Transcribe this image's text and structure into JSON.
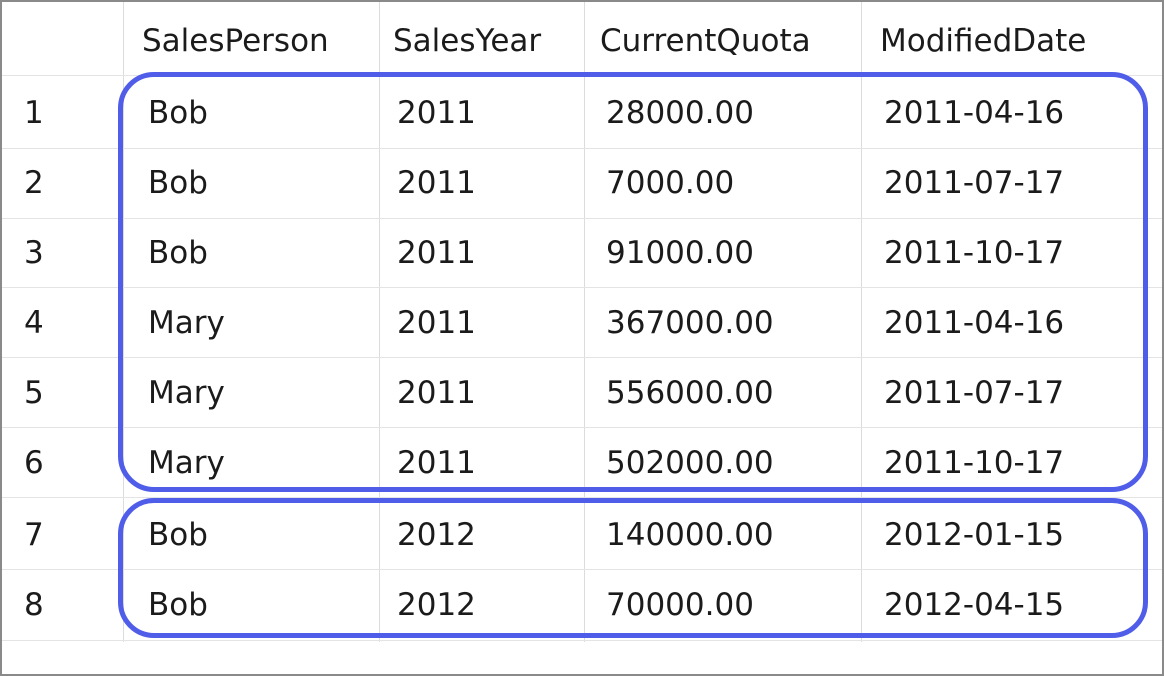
{
  "columns": [
    "",
    "SalesPerson",
    "SalesYear",
    "CurrentQuota",
    "ModifiedDate"
  ],
  "rows": [
    {
      "n": "1",
      "person": "Bob",
      "year": "2011",
      "quota": "28000.00",
      "date": "2011-04-16"
    },
    {
      "n": "2",
      "person": "Bob",
      "year": "2011",
      "quota": "7000.00",
      "date": "2011-07-17"
    },
    {
      "n": "3",
      "person": "Bob",
      "year": "2011",
      "quota": "91000.00",
      "date": "2011-10-17"
    },
    {
      "n": "4",
      "person": "Mary",
      "year": "2011",
      "quota": "367000.00",
      "date": "2011-04-16"
    },
    {
      "n": "5",
      "person": "Mary",
      "year": "2011",
      "quota": "556000.00",
      "date": "2011-07-17"
    },
    {
      "n": "6",
      "person": "Mary",
      "year": "2011",
      "quota": "502000.00",
      "date": "2011-10-17"
    },
    {
      "n": "7",
      "person": "Bob",
      "year": "2012",
      "quota": "140000.00",
      "date": "2012-01-15"
    },
    {
      "n": "8",
      "person": "Bob",
      "year": "2012",
      "quota": "70000.00",
      "date": "2012-04-15"
    }
  ],
  "highlight_color": "#4f5de9"
}
